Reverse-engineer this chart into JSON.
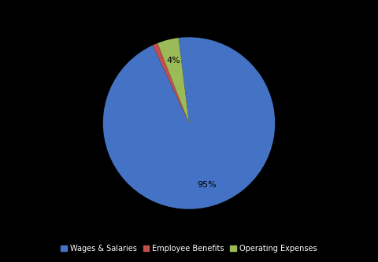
{
  "labels": [
    "Wages & Salaries",
    "Employee Benefits",
    "Operating Expenses"
  ],
  "values": [
    95,
    1,
    4
  ],
  "colors": [
    "#4472C4",
    "#C0504D",
    "#9BBB59"
  ],
  "background_color": "#000000",
  "text_color": "#000000",
  "startangle": 97,
  "figsize": [
    4.8,
    3.33
  ],
  "dpi": 100,
  "legend_fontsize": 7,
  "pct_fontsize": 8
}
